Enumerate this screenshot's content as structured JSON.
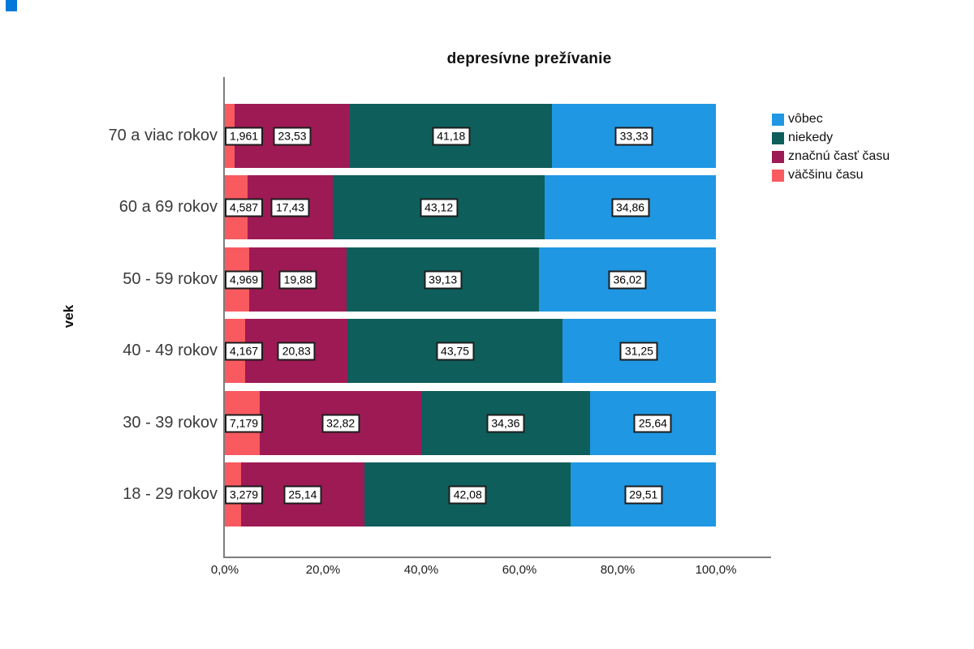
{
  "window": {
    "corner_accent_color": "#0078D7"
  },
  "chart_data": {
    "type": "bar",
    "subtype": "horizontal-stacked-percent",
    "title": "depresívne prežívanie",
    "ylabel": "vek",
    "xlabel": "",
    "xlim": [
      0,
      100
    ],
    "grid": false,
    "x_ticks": [
      "0,0%",
      "20,0%",
      "40,0%",
      "60,0%",
      "80,0%",
      "100,0%"
    ],
    "categories": [
      "70 a viac rokov",
      "60 a 69 rokov",
      "50 - 59 rokov",
      "40 - 49 rokov",
      "30 - 39 rokov",
      "18 - 29 rokov"
    ],
    "legend": {
      "position": "right",
      "entries": [
        {
          "label": "vôbec",
          "color": "#1F97E3"
        },
        {
          "label": "niekedy",
          "color": "#0E5E5B"
        },
        {
          "label": "značnú časť času",
          "color": "#9E1A55"
        },
        {
          "label": "väčšinu času",
          "color": "#F95A60"
        }
      ]
    },
    "series": [
      {
        "name": "väčšinu času",
        "color": "#F95A60",
        "values": [
          1.961,
          4.587,
          4.969,
          4.167,
          7.179,
          3.279
        ],
        "labels": [
          "1,961",
          "4,587",
          "4,969",
          "4,167",
          "7,179",
          "3,279"
        ]
      },
      {
        "name": "značnú časť času",
        "color": "#9E1A55",
        "values": [
          23.53,
          17.43,
          19.88,
          20.83,
          32.82,
          25.14
        ],
        "labels": [
          "23,53",
          "17,43",
          "19,88",
          "20,83",
          "32,82",
          "25,14"
        ]
      },
      {
        "name": "niekedy",
        "color": "#0E5E5B",
        "values": [
          41.18,
          43.12,
          39.13,
          43.75,
          34.36,
          42.08
        ],
        "labels": [
          "41,18",
          "43,12",
          "39,13",
          "43,75",
          "34,36",
          "42,08"
        ]
      },
      {
        "name": "vôbec",
        "color": "#1F97E3",
        "values": [
          33.33,
          34.86,
          36.02,
          31.25,
          25.64,
          29.51
        ],
        "labels": [
          "33,33",
          "34,86",
          "36,02",
          "31,25",
          "25,64",
          "29,51"
        ]
      }
    ]
  }
}
